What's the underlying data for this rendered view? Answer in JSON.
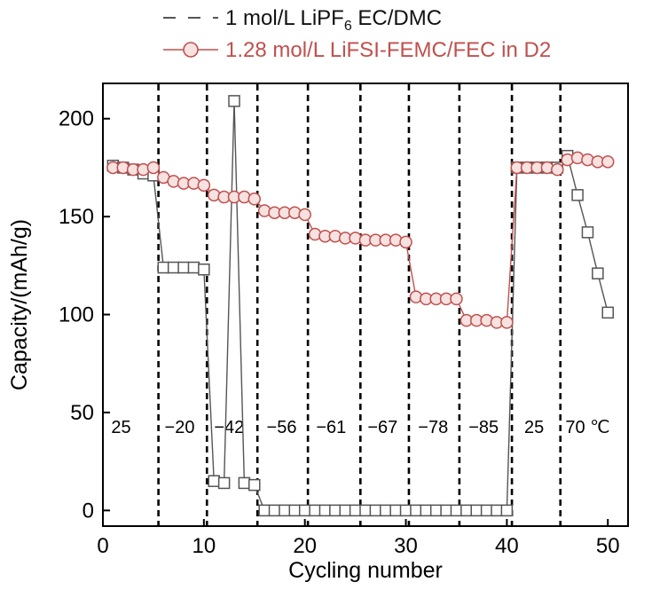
{
  "chart_data": {
    "type": "scatter",
    "xlabel": "Cycling number",
    "ylabel": "Capacity/(mAh/g)",
    "xlim": [
      0,
      52
    ],
    "ylim": [
      -8,
      218
    ],
    "xticks": [
      "0",
      "10",
      "20",
      "30",
      "40",
      "50"
    ],
    "yticks": [
      "0",
      "50",
      "100",
      "150",
      "200"
    ],
    "grid": false,
    "legend_position": "top",
    "section_dividers": [
      5.5,
      10.3,
      15.3,
      20.3,
      25.5,
      30.3,
      35.3,
      40.5,
      45.3
    ],
    "temperature_labels": [
      {
        "text": "25",
        "x": 1.8
      },
      {
        "text": "−20",
        "x": 7.6
      },
      {
        "text": "−42",
        "x": 12.5
      },
      {
        "text": "−56",
        "x": 17.7
      },
      {
        "text": "−61",
        "x": 22.6
      },
      {
        "text": "−67",
        "x": 27.7
      },
      {
        "text": "−78",
        "x": 32.7
      },
      {
        "text": "−85",
        "x": 37.7
      },
      {
        "text": "25",
        "x": 42.7
      },
      {
        "text": "70 ℃",
        "x": 48.0
      }
    ],
    "series": [
      {
        "name_parts": [
          "1 mol/L LiPF",
          "6",
          " EC/DMC"
        ],
        "color": "#555555",
        "marker": "square",
        "line_style": "dashed",
        "x": [
          1,
          2,
          3,
          4,
          5,
          6,
          7,
          8,
          9,
          10,
          11,
          12,
          13,
          14,
          15,
          16,
          17,
          18,
          19,
          20,
          21,
          22,
          23,
          24,
          25,
          26,
          27,
          28,
          29,
          30,
          31,
          32,
          33,
          34,
          35,
          36,
          37,
          38,
          39,
          40,
          41,
          42,
          43,
          44,
          45,
          46,
          47,
          48,
          49,
          50
        ],
        "values": [
          176,
          175,
          174,
          172,
          171,
          124,
          124,
          124,
          124,
          123,
          15,
          14,
          209,
          14,
          13,
          0,
          0,
          0,
          0,
          0,
          0,
          0,
          0,
          0,
          0,
          0,
          0,
          0,
          0,
          0,
          0,
          0,
          0,
          0,
          0,
          0,
          0,
          0,
          0,
          0,
          175,
          175,
          175,
          175,
          175,
          181,
          161,
          142,
          121,
          101
        ]
      },
      {
        "name": "1.28 mol/L LiFSI-FEMC/FEC in D2",
        "color": "#c0504d",
        "marker": "circle",
        "line_style": "solid",
        "x": [
          1,
          2,
          3,
          4,
          5,
          6,
          7,
          8,
          9,
          10,
          11,
          12,
          13,
          14,
          15,
          16,
          17,
          18,
          19,
          20,
          21,
          22,
          23,
          24,
          25,
          26,
          27,
          28,
          29,
          30,
          31,
          32,
          33,
          34,
          35,
          36,
          37,
          38,
          39,
          40,
          41,
          42,
          43,
          44,
          45,
          46,
          47,
          48,
          49,
          50
        ],
        "values": [
          175,
          175,
          174,
          174,
          175,
          170,
          168,
          167,
          167,
          166,
          161,
          160,
          160,
          160,
          159,
          153,
          152,
          152,
          152,
          151,
          141,
          140,
          140,
          139,
          139,
          138,
          138,
          138,
          138,
          137,
          109,
          108,
          108,
          108,
          108,
          97,
          97,
          97,
          96,
          96,
          175,
          175,
          175,
          175,
          174,
          179,
          180,
          179,
          178,
          178
        ]
      }
    ]
  }
}
